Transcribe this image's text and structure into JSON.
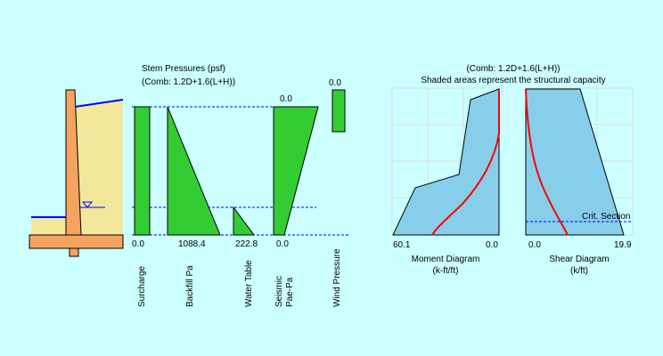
{
  "colors": {
    "background": "#ccffff",
    "soil": "#f2e79a",
    "concrete": "#f4a460",
    "pressure_fill": "#33cc33",
    "capacity_fill": "#87ceeb",
    "demand_curve": "#ff0000",
    "water_line": "#0000ff",
    "grid": "#dddddd"
  },
  "stem_pressures": {
    "title": "Stem Pressures (psf)",
    "combination": "(Comb: 1.2D+1.6(L+H))",
    "top_values": {
      "seismic": "0.0",
      "wind": "0.0"
    },
    "bottom_values": {
      "surcharge": "0.0",
      "backfill": "1088.4",
      "water_table": "222.8",
      "seismic": "0.0"
    },
    "labels": {
      "surcharge": "Surcharge",
      "backfill": "Backfill Pa",
      "water_table": "Water Table",
      "seismic_line1": "Seismic",
      "seismic_line2": "Pae-Pa",
      "wind": "Wind Pressure"
    }
  },
  "capacity_diagrams": {
    "combination": "(Comb: 1.2D+1.6(L+H))",
    "note": "Shaded areas represent the structural capacity",
    "moment": {
      "left_value": "60.1",
      "right_value": "0.0",
      "title": "Moment Diagram",
      "units": "(k-ft/ft)"
    },
    "shear": {
      "left_value": "0.0",
      "right_value": "19.9",
      "title": "Shear Diagram",
      "units": "(k/ft)",
      "crit_section_label": "Crit. Section"
    }
  }
}
